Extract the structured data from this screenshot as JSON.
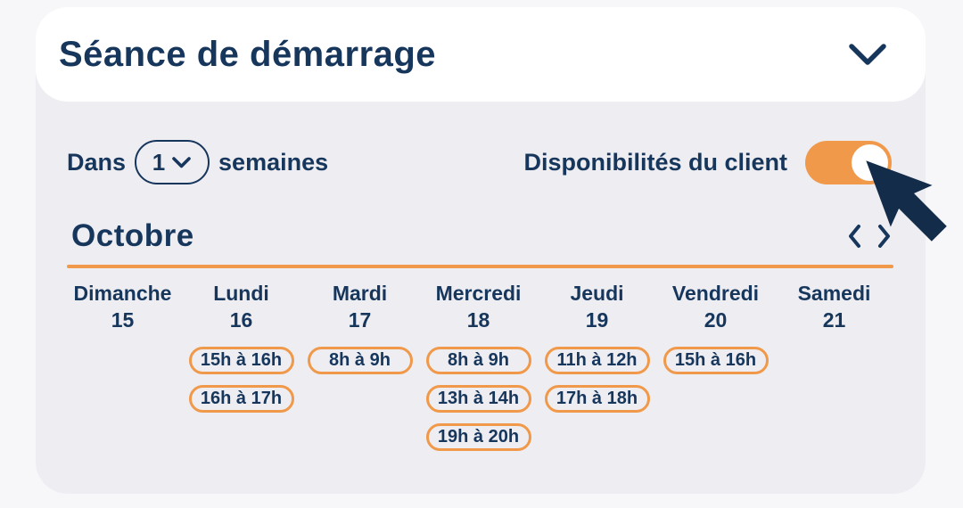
{
  "theme": {
    "navy": "#16365C",
    "navy_dark": "#132C49",
    "orange": "#F0994A",
    "panel_bg": "#EEEDF2",
    "page_bg": "#F7F7F9",
    "card_bg": "#FFFFFF"
  },
  "header": {
    "title": "Séance de démarrage",
    "collapse_icon": "chevron-down"
  },
  "controls": {
    "weeks_prefix": "Dans",
    "weeks_value": "1",
    "weeks_dropdown_icon": "chevron-down",
    "weeks_suffix": "semaines",
    "availability_label": "Disponibilités du client",
    "availability_toggle": "on"
  },
  "calendar": {
    "month": "Octobre",
    "prev_icon": "chevron-left",
    "next_icon": "chevron-right",
    "days": [
      {
        "name": "Dimanche",
        "number": "15",
        "slots": []
      },
      {
        "name": "Lundi",
        "number": "16",
        "slots": [
          "15h à 16h",
          "16h à 17h"
        ]
      },
      {
        "name": "Mardi",
        "number": "17",
        "slots": [
          "8h à 9h"
        ]
      },
      {
        "name": "Mercredi",
        "number": "18",
        "slots": [
          "8h à 9h",
          "13h à 14h",
          "19h à 20h"
        ]
      },
      {
        "name": "Jeudi",
        "number": "19",
        "slots": [
          "11h à 12h",
          "17h à 18h"
        ]
      },
      {
        "name": "Vendredi",
        "number": "20",
        "slots": [
          "15h à 16h"
        ]
      },
      {
        "name": "Samedi",
        "number": "21",
        "slots": []
      }
    ]
  },
  "cursor": {
    "icon": "mouse-pointer"
  }
}
